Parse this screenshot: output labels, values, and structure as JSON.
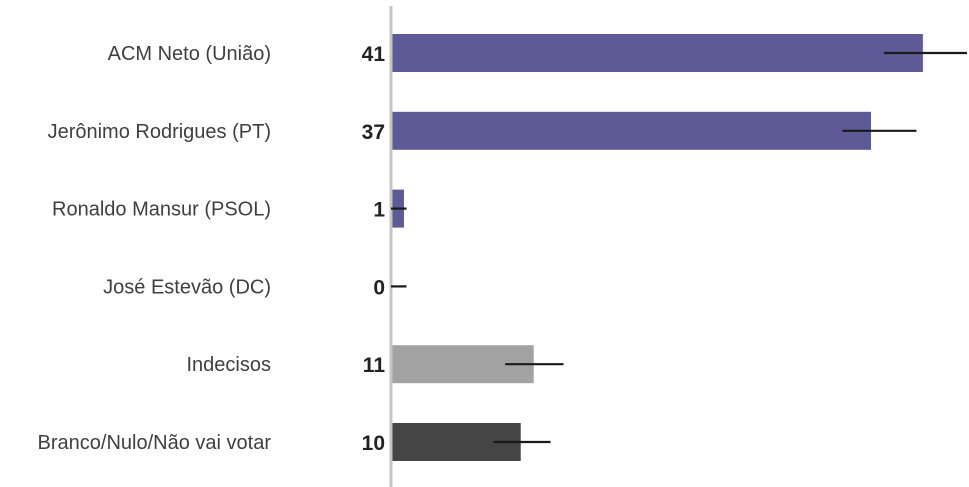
{
  "chart_data": {
    "type": "bar",
    "orientation": "horizontal",
    "categories": [
      "ACM Neto (União)",
      "Jerônimo Rodrigues (PT)",
      "Ronaldo Mansur (PSOL)",
      "José Estevão (DC)",
      "Indecisos",
      "Branco/Nulo/Não vai votar"
    ],
    "values": [
      41,
      37,
      1,
      0,
      11,
      10
    ],
    "value_labels": [
      "41",
      "37",
      "1",
      "0",
      "11",
      "10"
    ],
    "error_bars": [
      [
        38,
        44.4
      ],
      [
        34.8,
        40.5
      ],
      [
        0,
        1.2
      ],
      [
        0,
        1.2
      ],
      [
        8.8,
        13.3
      ],
      [
        7.9,
        12.3
      ]
    ],
    "colors": [
      "#5e5a98",
      "#5e5a98",
      "#5e5a98",
      "#5e5a98",
      "#a2a2a2",
      "#454545"
    ],
    "error_bar_color": "#1a1a1a",
    "axis_color": "#c4c4c4",
    "xlim": [
      0,
      44.4
    ],
    "title": "",
    "xlabel": "",
    "ylabel": "",
    "grid": false,
    "legend": "none"
  }
}
